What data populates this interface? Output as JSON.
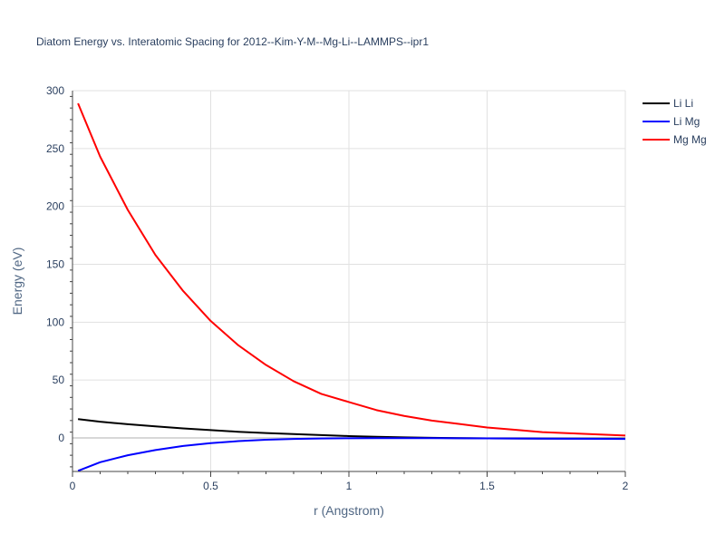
{
  "chart_data": {
    "type": "line",
    "title": "Diatom Energy vs. Interatomic Spacing for 2012--Kim-Y-M--Mg-Li--LAMMPS--ipr1",
    "xlabel": "r (Angstrom)",
    "ylabel": "Energy (eV)",
    "xlim": [
      0,
      2
    ],
    "ylim": [
      -29,
      300
    ],
    "xticks": [
      0,
      0.5,
      1,
      1.5,
      2
    ],
    "xtick_labels": [
      "0",
      "0.5",
      "1",
      "1.5",
      "2"
    ],
    "yticks": [
      0,
      50,
      100,
      150,
      200,
      250,
      300
    ],
    "ytick_labels": [
      "0",
      "50",
      "100",
      "150",
      "200",
      "250",
      "300"
    ],
    "grid": true,
    "legend_position": "top-right",
    "series": [
      {
        "name": "Li Li",
        "color": "#000000",
        "x": [
          0.02,
          0.1,
          0.2,
          0.3,
          0.4,
          0.5,
          0.6,
          0.7,
          0.8,
          0.9,
          1.0,
          1.1,
          1.2,
          1.3,
          1.4,
          1.5,
          1.6,
          1.7,
          1.8,
          1.9,
          2.0
        ],
        "y": [
          16.2,
          14,
          11.8,
          10,
          8.2,
          6.7,
          5.3,
          4.2,
          3.3,
          2.4,
          1.6,
          1.0,
          0.5,
          0.1,
          -0.2,
          -0.4,
          -0.5,
          -0.6,
          -0.6,
          -0.6,
          -0.6
        ]
      },
      {
        "name": "Li Mg",
        "color": "#0000ff",
        "x": [
          0.02,
          0.1,
          0.2,
          0.3,
          0.4,
          0.5,
          0.6,
          0.7,
          0.8,
          0.9,
          1.0,
          1.1,
          1.2,
          1.3,
          1.4,
          1.5,
          1.6,
          1.7,
          1.8,
          1.9,
          2.0
        ],
        "y": [
          -28.5,
          -21,
          -15,
          -10.5,
          -7,
          -4.5,
          -2.8,
          -1.6,
          -0.9,
          -0.5,
          -0.3,
          -0.2,
          -0.2,
          -0.2,
          -0.3,
          -0.4,
          -0.5,
          -0.6,
          -0.7,
          -0.8,
          -0.9
        ]
      },
      {
        "name": "Mg Mg",
        "color": "#ff0000",
        "x": [
          0.02,
          0.1,
          0.2,
          0.3,
          0.4,
          0.5,
          0.6,
          0.7,
          0.8,
          0.9,
          1.0,
          1.1,
          1.2,
          1.3,
          1.4,
          1.5,
          1.6,
          1.7,
          1.8,
          1.9,
          2.0
        ],
        "y": [
          289,
          243,
          197,
          158,
          127,
          101,
          80,
          63,
          49,
          38,
          31,
          24,
          19,
          15,
          12,
          9,
          7,
          5,
          4,
          3,
          2
        ]
      }
    ]
  }
}
